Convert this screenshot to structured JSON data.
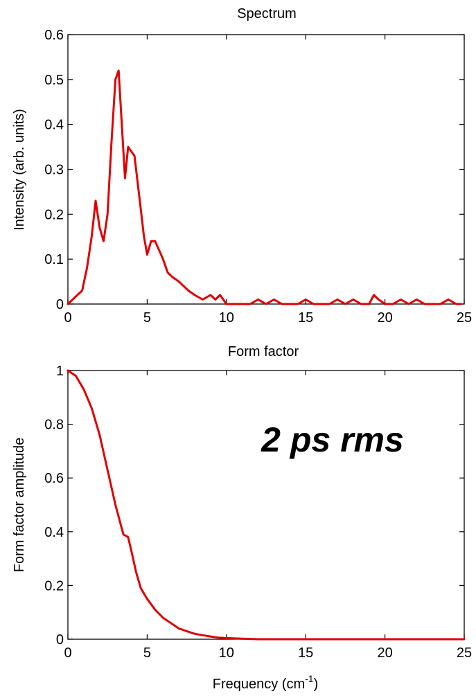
{
  "chart_data": [
    {
      "type": "line",
      "title": "Spectrum",
      "xlabel": "",
      "ylabel": "Intensity (arb. units)",
      "xlim": [
        0,
        25
      ],
      "ylim": [
        0,
        0.6
      ],
      "xticks": [
        "0",
        "5",
        "10",
        "15",
        "20",
        "25"
      ],
      "yticks": [
        "0",
        "0.1",
        "0.2",
        "0.3",
        "0.4",
        "0.5",
        "0.6"
      ],
      "grid": false,
      "series": [
        {
          "color": "#e00000",
          "x": [
            0,
            0.3,
            0.6,
            0.9,
            1.2,
            1.5,
            1.75,
            2.0,
            2.25,
            2.5,
            2.75,
            3.0,
            3.2,
            3.4,
            3.6,
            3.8,
            4.0,
            4.2,
            4.5,
            4.8,
            5.0,
            5.25,
            5.5,
            5.75,
            6.0,
            6.3,
            6.6,
            7.0,
            7.3,
            7.6,
            8.0,
            8.5,
            9.0,
            9.3,
            9.6,
            10.0,
            10.5,
            11.0,
            11.5,
            12.0,
            12.5,
            13.0,
            13.5,
            14.0,
            14.5,
            15.0,
            15.5,
            16.0,
            16.5,
            17.0,
            17.5,
            18.0,
            18.5,
            19.0,
            19.3,
            19.6,
            20.0,
            20.5,
            21.0,
            21.5,
            22.0,
            22.5,
            23.0,
            23.5,
            24.0,
            24.5,
            24.8
          ],
          "y": [
            0.0,
            0.01,
            0.02,
            0.03,
            0.08,
            0.15,
            0.23,
            0.17,
            0.14,
            0.2,
            0.36,
            0.5,
            0.52,
            0.4,
            0.28,
            0.35,
            0.34,
            0.33,
            0.24,
            0.15,
            0.11,
            0.14,
            0.14,
            0.12,
            0.1,
            0.07,
            0.06,
            0.05,
            0.04,
            0.03,
            0.02,
            0.01,
            0.02,
            0.01,
            0.02,
            0.0,
            0.0,
            0.0,
            0.0,
            0.01,
            0.0,
            0.01,
            0.0,
            0.0,
            0.0,
            0.01,
            0.0,
            0.0,
            0.0,
            0.01,
            0.0,
            0.01,
            0.0,
            0.0,
            0.02,
            0.01,
            0.0,
            0.0,
            0.01,
            0.0,
            0.01,
            0.0,
            0.0,
            0.0,
            0.01,
            0.0,
            0.0
          ]
        }
      ]
    },
    {
      "type": "line",
      "title": "Form factor",
      "xlabel": "Frequency (cm",
      "xlabel_sup": "-1",
      "xlabel_end": ")",
      "ylabel": "Form factor amplitude",
      "annotation": "2 ps rms",
      "xlim": [
        0,
        25
      ],
      "ylim": [
        0,
        1
      ],
      "xticks": [
        "0",
        "5",
        "10",
        "15",
        "20",
        "25"
      ],
      "yticks": [
        "0",
        "0.2",
        "0.4",
        "0.6",
        "0.8",
        "1"
      ],
      "grid": false,
      "series": [
        {
          "color": "#e00000",
          "x": [
            0,
            0.5,
            1.0,
            1.5,
            2.0,
            2.5,
            3.0,
            3.5,
            3.8,
            4.0,
            4.3,
            4.6,
            5.0,
            5.5,
            6.0,
            6.5,
            7.0,
            7.5,
            8.0,
            8.5,
            9.0,
            9.5,
            10.0,
            11.0,
            12.0,
            15.0,
            20.0,
            25.0
          ],
          "y": [
            1.0,
            0.98,
            0.93,
            0.86,
            0.76,
            0.63,
            0.5,
            0.39,
            0.38,
            0.33,
            0.25,
            0.19,
            0.15,
            0.11,
            0.08,
            0.06,
            0.04,
            0.03,
            0.02,
            0.015,
            0.01,
            0.006,
            0.004,
            0.002,
            0.0,
            0.0,
            0.0,
            0.0
          ]
        }
      ]
    }
  ]
}
